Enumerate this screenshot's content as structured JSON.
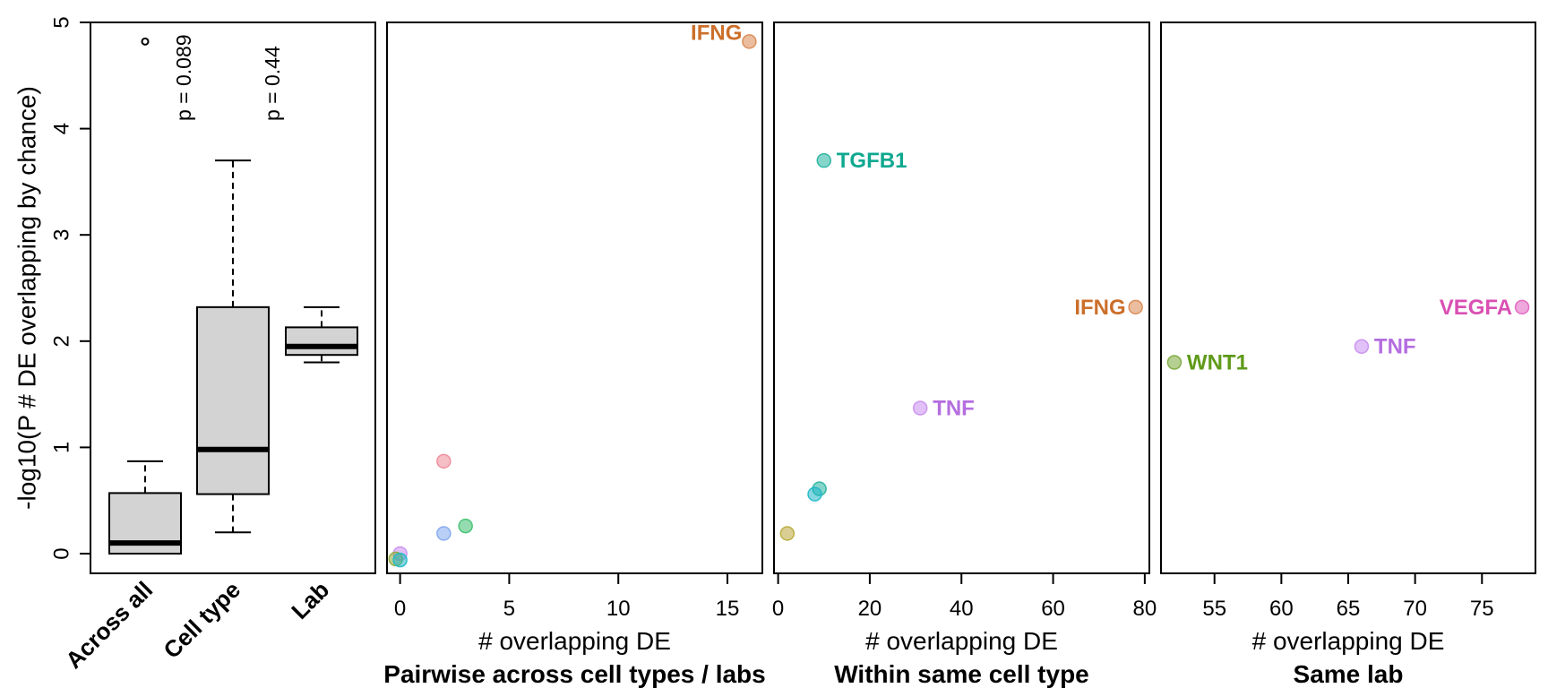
{
  "chart_data": [
    {
      "type": "boxplot",
      "ylabel": "-log10(P # DE overlapping by chance)",
      "ylim": [
        -0.2,
        5
      ],
      "yticks": [
        0,
        1,
        2,
        3,
        4,
        5
      ],
      "categories": [
        "Across all",
        "Cell type",
        "Lab"
      ],
      "boxes": [
        {
          "name": "Across all",
          "min": 0.0,
          "q1": 0.0,
          "median": 0.1,
          "q3": 0.57,
          "max": 0.87,
          "outliers": [
            4.82
          ]
        },
        {
          "name": "Cell type",
          "min": 0.2,
          "q1": 0.56,
          "median": 0.98,
          "q3": 2.32,
          "max": 3.7,
          "outliers": []
        },
        {
          "name": "Lab",
          "min": 1.8,
          "q1": 1.87,
          "median": 1.95,
          "q3": 2.13,
          "max": 2.32,
          "outliers": []
        }
      ],
      "annotations": [
        {
          "text": "p = 0.089",
          "box": "Cell type"
        },
        {
          "text": "p = 0.44",
          "box": "Lab"
        }
      ]
    },
    {
      "type": "scatter",
      "title": "Pairwise across cell types / labs",
      "xlabel": "# overlapping DE",
      "xlim": [
        -0.6,
        16.6
      ],
      "xticks": [
        0,
        5,
        10,
        15
      ],
      "ylim": [
        -0.2,
        5
      ],
      "points": [
        {
          "x": 16,
          "y": 4.82,
          "label": "IFNG",
          "color": "#d9874f"
        },
        {
          "x": 2,
          "y": 0.87,
          "label": "",
          "color": "#ee8896"
        },
        {
          "x": 3,
          "y": 0.26,
          "label": "",
          "color": "#3cbf6e"
        },
        {
          "x": 2,
          "y": 0.19,
          "label": "",
          "color": "#7fa7ee"
        },
        {
          "x": 0,
          "y": 0.0,
          "label": "",
          "color": "#c98ef0"
        },
        {
          "x": -0.2,
          "y": -0.05,
          "label": "",
          "color": "#8ea83a"
        },
        {
          "x": 0,
          "y": -0.06,
          "label": "",
          "color": "#1fb7c8"
        }
      ]
    },
    {
      "type": "scatter",
      "title": "Within same cell type",
      "xlabel": "# overlapping DE",
      "xlim": [
        -0.9,
        81
      ],
      "xticks": [
        0,
        20,
        40,
        60,
        80
      ],
      "ylim": [
        -0.2,
        5
      ],
      "points": [
        {
          "x": 10,
          "y": 3.7,
          "label": "TGFB1",
          "color": "#23b3a0",
          "side": "right"
        },
        {
          "x": 78,
          "y": 2.32,
          "label": "IFNG",
          "color": "#d9874f",
          "side": "left"
        },
        {
          "x": 31,
          "y": 1.37,
          "label": "TNF",
          "color": "#c98ef0",
          "side": "right"
        },
        {
          "x": 9,
          "y": 0.61,
          "label": "",
          "color": "#23b3a0"
        },
        {
          "x": 8,
          "y": 0.56,
          "label": "",
          "color": "#1fb7c8"
        },
        {
          "x": 2,
          "y": 0.19,
          "label": "",
          "color": "#b9a83a"
        }
      ]
    },
    {
      "type": "scatter",
      "title": "Same lab",
      "xlabel": "# overlapping DE",
      "xlim": [
        51,
        79
      ],
      "xticks": [
        55,
        60,
        65,
        70,
        75
      ],
      "ylim": [
        -0.2,
        5
      ],
      "points": [
        {
          "x": 78,
          "y": 2.32,
          "label": "VEGFA",
          "color": "#e060c0",
          "side": "left"
        },
        {
          "x": 66,
          "y": 1.95,
          "label": "TNF",
          "color": "#c98ef0",
          "side": "right"
        },
        {
          "x": 52,
          "y": 1.8,
          "label": "WNT1",
          "color": "#7aa83a",
          "side": "right"
        }
      ]
    }
  ],
  "label_colors": {
    "IFNG": "#cc6f2a",
    "TGFB1": "#0fa890",
    "TNF": "#b46ee0",
    "VEGFA": "#d94fb3",
    "WNT1": "#5f9a1a"
  }
}
